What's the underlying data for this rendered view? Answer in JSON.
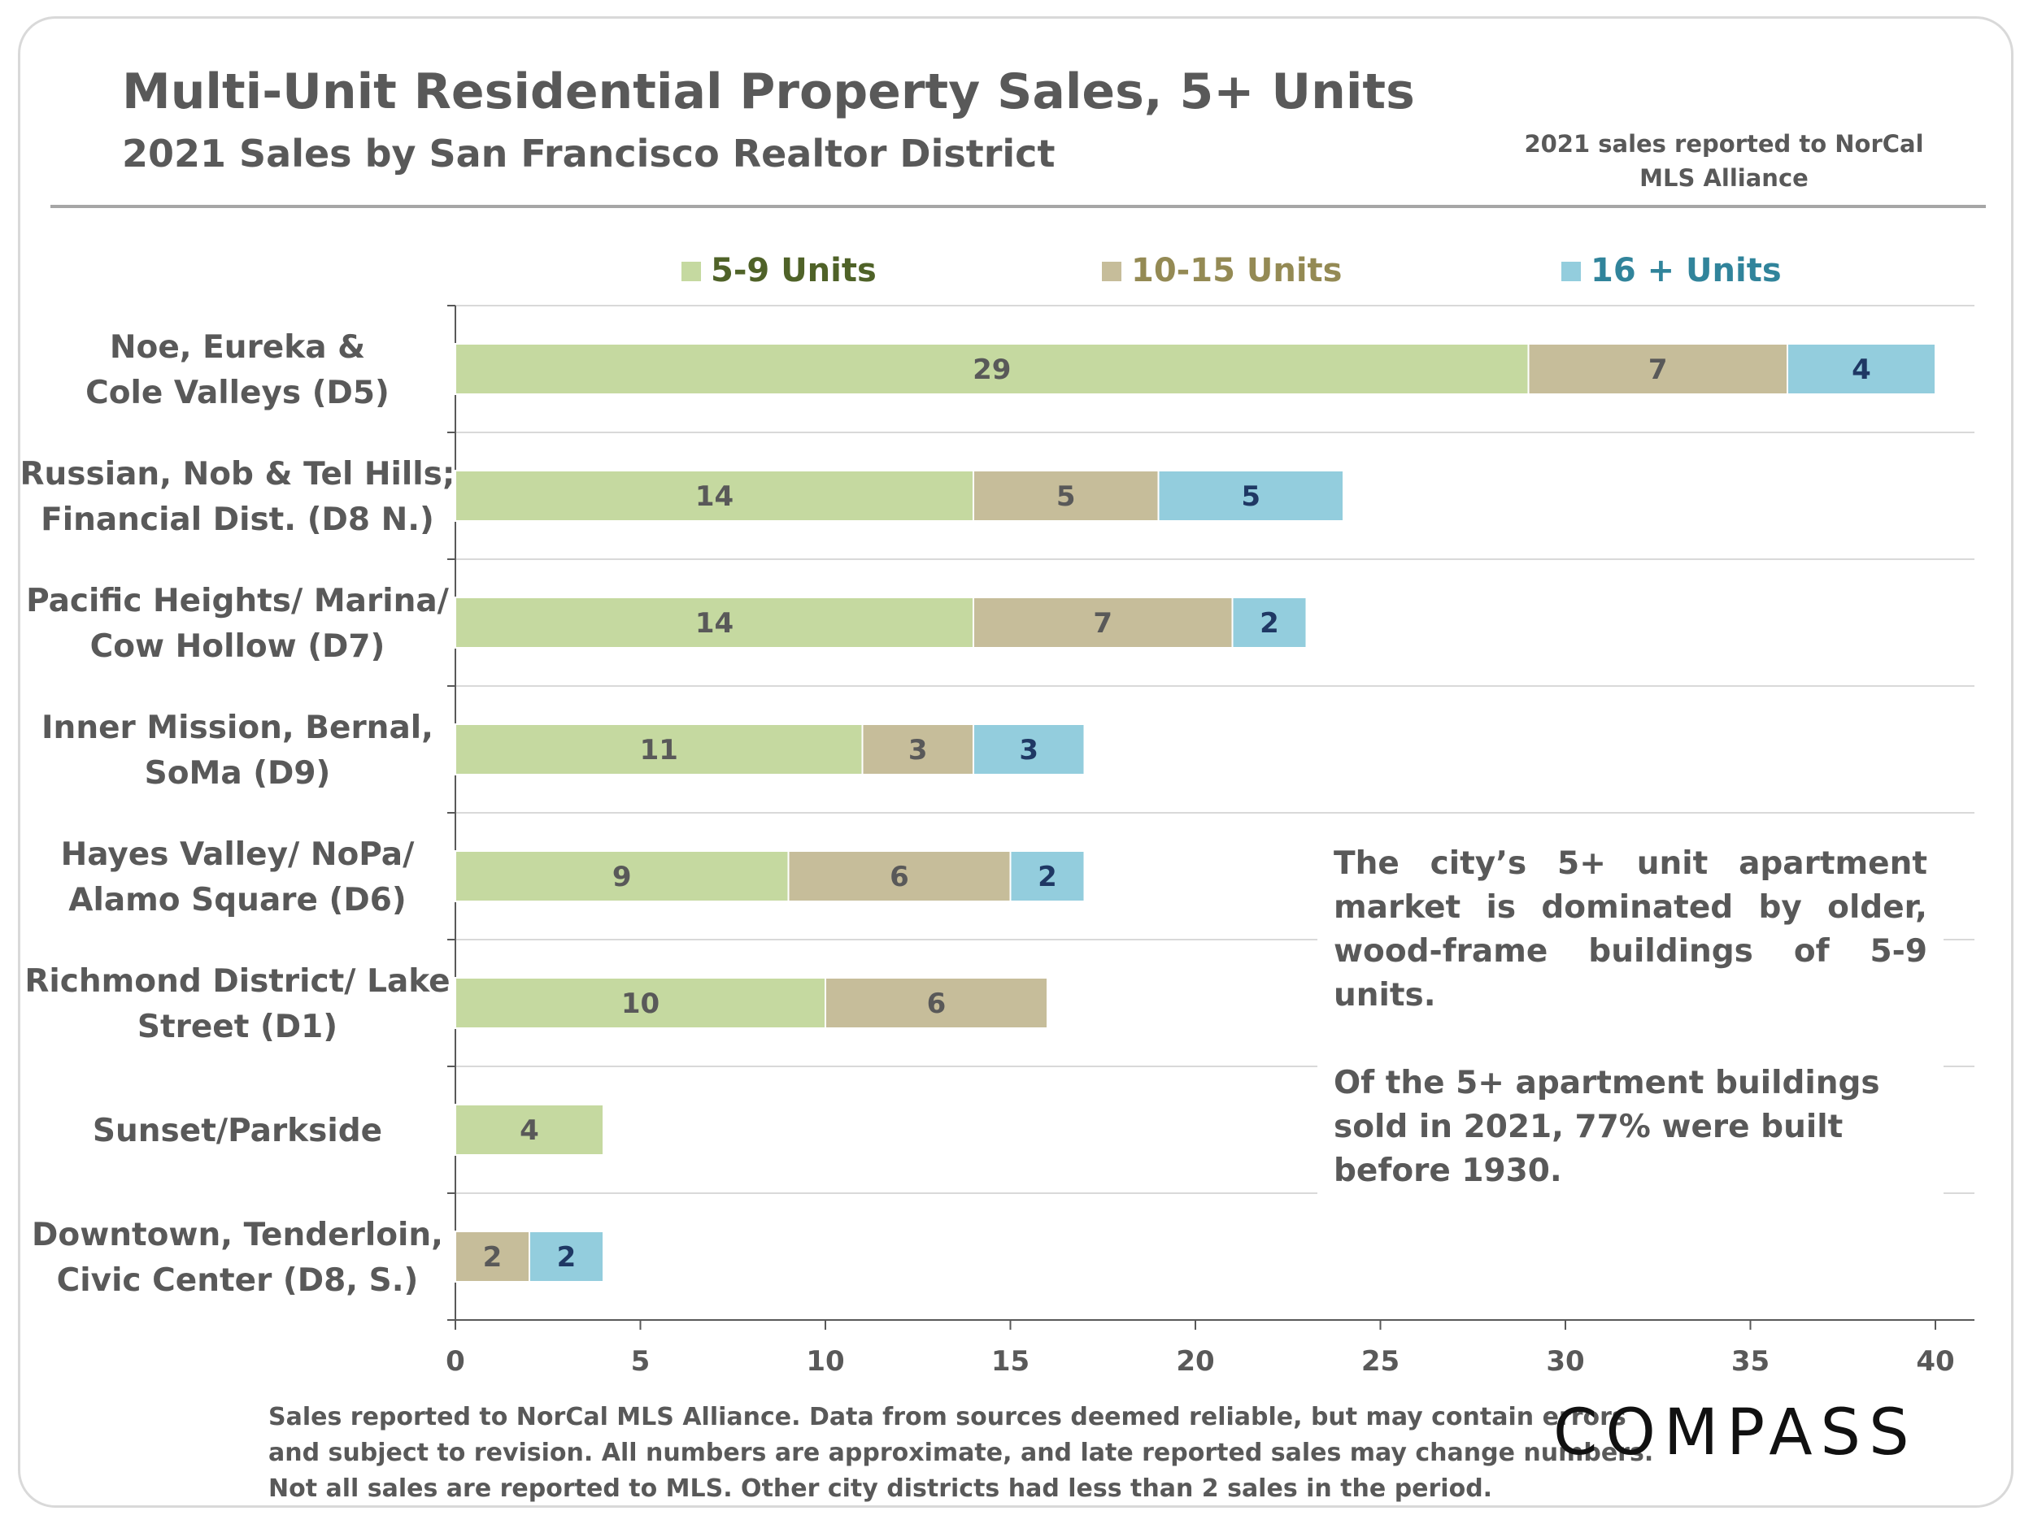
{
  "title": "Multi-Unit Residential Property Sales, 5+ Units",
  "subtitle": "2021 Sales by San Francisco Realtor District",
  "source_note": "2021 sales reported to NorCal MLS Alliance",
  "callout": {
    "paragraph1": "The city’s 5+ unit apartment market is dominated by older, wood-frame buildings of 5-9 units.",
    "paragraph2": "Of the 5+ apartment buildings sold in 2021, 77% were built before 1930."
  },
  "footnote": [
    "Sales reported to NorCal MLS Alliance. Data from sources deemed reliable, but may contain errors",
    "and subject to revision. All numbers are approximate, and late reported sales may change numbers.",
    "Not all sales are reported to MLS. Other city districts had less than 2 sales in the period."
  ],
  "logo": "COMPASS",
  "colors": {
    "series_5_9": "#c5d9a0",
    "series_10_15": "#c6bd9a",
    "series_16_plus": "#93cddd",
    "legend_5_9_text": "#4f6228",
    "legend_10_15_text": "#948a54",
    "legend_16_plus_text": "#31849b",
    "label_5_9": "#595959",
    "label_10_15": "#595959",
    "label_16_plus": "#1f3864",
    "grid": "#d9d9d9",
    "axis": "#595959"
  },
  "chart_data": {
    "type": "bar",
    "orientation": "horizontal",
    "stacked": true,
    "categories": [
      [
        "Noe, Eureka &",
        "Cole Valleys (D5)"
      ],
      [
        "Russian, Nob & Tel Hills;",
        "Financial Dist. (D8 N.)"
      ],
      [
        "Pacific Heights/ Marina/",
        "Cow Hollow (D7)"
      ],
      [
        "Inner Mission, Bernal,",
        "SoMa (D9)"
      ],
      [
        "Hayes Valley/ NoPa/",
        "Alamo Square (D6)"
      ],
      [
        "Richmond District/ Lake",
        "Street (D1)"
      ],
      [
        "Sunset/Parkside"
      ],
      [
        "Downtown, Tenderloin,",
        "Civic Center (D8, S.)"
      ]
    ],
    "series": [
      {
        "name": "5-9 Units",
        "values": [
          29,
          14,
          14,
          11,
          9,
          10,
          4,
          0
        ]
      },
      {
        "name": "10-15 Units",
        "values": [
          7,
          5,
          7,
          3,
          6,
          6,
          null,
          2
        ]
      },
      {
        "name": "16 + Units",
        "values": [
          4,
          5,
          2,
          3,
          2,
          null,
          null,
          2
        ]
      }
    ],
    "xlim": [
      0,
      40
    ],
    "xticks": [
      "0",
      "5",
      "10",
      "15",
      "20",
      "25",
      "30",
      "35",
      "40"
    ],
    "grid": true,
    "legend_position": "top"
  }
}
